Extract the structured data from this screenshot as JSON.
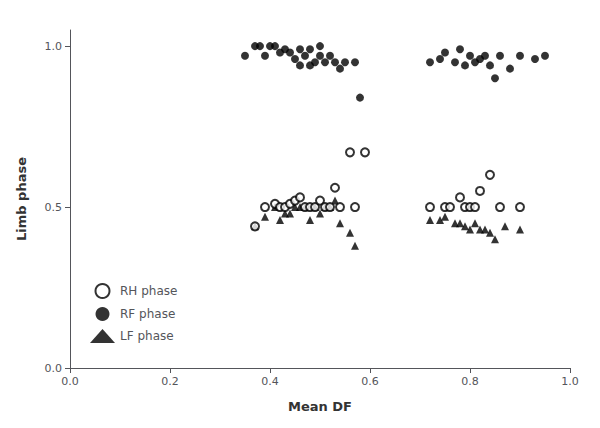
{
  "chart_data": {
    "type": "scatter",
    "title": "",
    "xlabel": "Mean DF",
    "ylabel": "Limb phase",
    "xlim": [
      0.0,
      1.0
    ],
    "ylim": [
      0.0,
      1.05
    ],
    "xticks": [
      {
        "value": 0,
        "label": "0.0"
      },
      0.2,
      0.4,
      0.6,
      0.8,
      {
        "value": 1,
        "label": "1.0"
      }
    ],
    "yticks": [
      {
        "value": 0,
        "label": "0.0"
      },
      0.5,
      {
        "value": 1,
        "label": "1.0"
      }
    ],
    "grid": false,
    "legend": "lower left",
    "series": [
      {
        "name": "RF phase",
        "color": "#000000",
        "marker": "circle",
        "x": [
          0.35,
          0.37,
          0.38,
          0.39,
          0.4,
          0.41,
          0.42,
          0.43,
          0.44,
          0.45,
          0.46,
          0.46,
          0.47,
          0.48,
          0.48,
          0.49,
          0.5,
          0.5,
          0.51,
          0.52,
          0.53,
          0.54,
          0.55,
          0.57,
          0.58,
          0.72,
          0.74,
          0.75,
          0.77,
          0.78,
          0.79,
          0.8,
          0.81,
          0.82,
          0.83,
          0.84,
          0.85,
          0.86,
          0.88,
          0.9,
          0.93,
          0.95
        ],
        "values": [
          0.97,
          1.0,
          1.0,
          0.97,
          1.0,
          1.0,
          0.98,
          0.99,
          0.98,
          0.96,
          0.94,
          0.99,
          0.97,
          0.94,
          0.99,
          0.95,
          0.97,
          1.0,
          0.95,
          0.97,
          0.95,
          0.93,
          0.95,
          0.95,
          0.84,
          0.95,
          0.96,
          0.98,
          0.95,
          0.99,
          0.94,
          0.97,
          0.95,
          0.96,
          0.97,
          0.94,
          0.9,
          0.97,
          0.93,
          0.97,
          0.96,
          0.97
        ]
      },
      {
        "name": "RH phase",
        "color": "#000000",
        "marker": "open circle",
        "x": [
          0.37,
          0.39,
          0.41,
          0.42,
          0.43,
          0.44,
          0.45,
          0.46,
          0.47,
          0.48,
          0.49,
          0.5,
          0.51,
          0.52,
          0.53,
          0.54,
          0.56,
          0.57,
          0.59,
          0.72,
          0.75,
          0.76,
          0.78,
          0.79,
          0.8,
          0.81,
          0.82,
          0.84,
          0.86,
          0.9
        ],
        "values": [
          0.44,
          0.5,
          0.51,
          0.5,
          0.5,
          0.51,
          0.52,
          0.53,
          0.5,
          0.5,
          0.5,
          0.52,
          0.5,
          0.5,
          0.56,
          0.5,
          0.67,
          0.5,
          0.67,
          0.5,
          0.5,
          0.5,
          0.53,
          0.5,
          0.5,
          0.5,
          0.55,
          0.6,
          0.5,
          0.5
        ]
      },
      {
        "name": "LF phase",
        "color": "#000000",
        "marker": "triangle",
        "x": [
          0.37,
          0.39,
          0.41,
          0.42,
          0.43,
          0.44,
          0.45,
          0.46,
          0.47,
          0.48,
          0.49,
          0.5,
          0.51,
          0.52,
          0.53,
          0.54,
          0.56,
          0.57,
          0.72,
          0.74,
          0.75,
          0.77,
          0.78,
          0.79,
          0.8,
          0.81,
          0.82,
          0.83,
          0.84,
          0.85,
          0.87,
          0.9
        ],
        "values": [
          0.44,
          0.47,
          0.5,
          0.46,
          0.48,
          0.48,
          0.5,
          0.5,
          0.5,
          0.46,
          0.5,
          0.48,
          0.5,
          0.5,
          0.52,
          0.45,
          0.42,
          0.38,
          0.46,
          0.46,
          0.47,
          0.45,
          0.45,
          0.44,
          0.43,
          0.45,
          0.43,
          0.43,
          0.42,
          0.4,
          0.44,
          0.43
        ]
      }
    ]
  }
}
